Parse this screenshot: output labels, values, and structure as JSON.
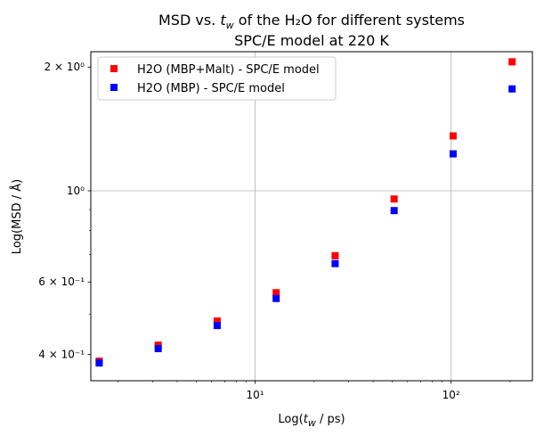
{
  "chart_data": {
    "type": "scatter",
    "title_line1": "MSD vs. t_w of the H₂O for different systems",
    "title_line2": "SPC/E model at 220 K",
    "xlabel": "Log(t_w / ps)",
    "ylabel": "Log(MSD / Å)",
    "xscale": "log",
    "yscale": "log",
    "xlim": [
      1.45,
      260
    ],
    "ylim": [
      0.345,
      2.18
    ],
    "x_ticks": [
      {
        "value": 10,
        "label": "10¹"
      },
      {
        "value": 100,
        "label": "10²"
      }
    ],
    "y_ticks": [
      {
        "value": 0.4,
        "label": "4 × 10⁻¹"
      },
      {
        "value": 0.6,
        "label": "6 × 10⁻¹"
      },
      {
        "value": 1.0,
        "label": "10⁰"
      },
      {
        "value": 2.0,
        "label": "2 × 10⁰"
      }
    ],
    "grid": true,
    "legend_position": "upper-left",
    "series": [
      {
        "name": "H2O (MBP+Malt) - SPC/E model",
        "color": "#ff0000",
        "marker": "square",
        "x": [
          1.6,
          3.2,
          6.4,
          12.8,
          25.6,
          51.2,
          102.4,
          204.8
        ],
        "y": [
          0.385,
          0.421,
          0.482,
          0.565,
          0.695,
          0.955,
          1.36,
          2.06
        ]
      },
      {
        "name": "H2O (MBP) - SPC/E model",
        "color": "#0000ff",
        "marker": "square",
        "x": [
          1.6,
          3.2,
          6.4,
          12.8,
          25.6,
          51.2,
          102.4,
          204.8
        ],
        "y": [
          0.381,
          0.413,
          0.47,
          0.547,
          0.665,
          0.895,
          1.23,
          1.77
        ]
      }
    ]
  }
}
